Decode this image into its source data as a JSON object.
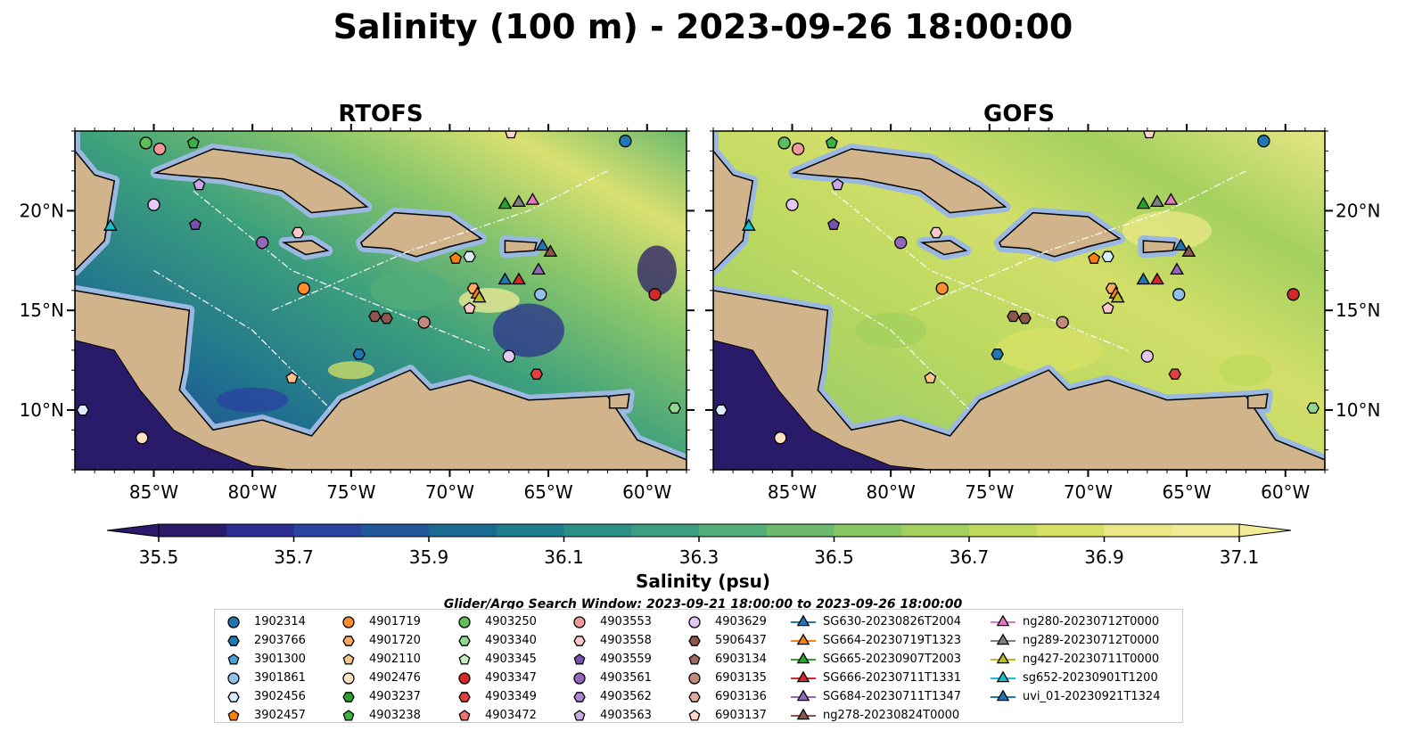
{
  "title": "Salinity (100 m) - 2023-09-26 18:00:00",
  "panels": [
    {
      "title": "RTOFS"
    },
    {
      "title": "GOFS"
    }
  ],
  "map": {
    "lon_range": [
      -89,
      -58
    ],
    "lat_range": [
      7,
      24
    ],
    "lon_ticks": [
      {
        "value": -85,
        "label": "85°W"
      },
      {
        "value": -80,
        "label": "80°W"
      },
      {
        "value": -75,
        "label": "75°W"
      },
      {
        "value": -70,
        "label": "70°W"
      },
      {
        "value": -65,
        "label": "65°W"
      },
      {
        "value": -60,
        "label": "60°W"
      }
    ],
    "lat_ticks": [
      {
        "value": 10,
        "label": "10°N"
      },
      {
        "value": 15,
        "label": "15°N"
      },
      {
        "value": 20,
        "label": "20°N"
      }
    ],
    "colors": {
      "land": "#d2b48c",
      "shallow": "#9bb8e0",
      "coast": "#000000"
    }
  },
  "colorbar": {
    "label": "Salinity (psu)",
    "ticks": [
      "35.5",
      "35.7",
      "35.9",
      "36.1",
      "36.3",
      "36.5",
      "36.7",
      "36.9",
      "37.1"
    ],
    "colors": [
      "#2a1a6a",
      "#2b2c92",
      "#2a42a0",
      "#21589a",
      "#1b6a92",
      "#1e7d8c",
      "#2b8f86",
      "#3d9e80",
      "#53ad78",
      "#6cba6e",
      "#88c664",
      "#a3d05e",
      "#bed95c",
      "#d7e166",
      "#ebe888",
      "#f3ec96"
    ]
  },
  "search_window": "Glider/Argo Search Window: 2023-09-21 18:00:00 to 2023-09-26 18:00:00",
  "legend": {
    "columns": [
      [
        {
          "label": "1902314",
          "marker": "circle",
          "color": "#1f77b4"
        },
        {
          "label": "2903766",
          "marker": "hexagon",
          "color": "#1f77b4"
        },
        {
          "label": "3901300",
          "marker": "pentagon",
          "color": "#4a9fd8"
        },
        {
          "label": "3901861",
          "marker": "circle",
          "color": "#8fc0ea"
        },
        {
          "label": "3902456",
          "marker": "hexagon",
          "color": "#d8ecfa"
        },
        {
          "label": "3902457",
          "marker": "pentagon",
          "color": "#ff7f0e"
        }
      ],
      [
        {
          "label": "4901719",
          "marker": "circle",
          "color": "#ff8c2e"
        },
        {
          "label": "4901720",
          "marker": "hexagon",
          "color": "#ffa860"
        },
        {
          "label": "4902110",
          "marker": "pentagon",
          "color": "#ffc48e"
        },
        {
          "label": "4902476",
          "marker": "circle",
          "color": "#ffe2c4"
        },
        {
          "label": "4903237",
          "marker": "hexagon",
          "color": "#2ca02c"
        },
        {
          "label": "4903238",
          "marker": "pentagon",
          "color": "#3cb043"
        }
      ],
      [
        {
          "label": "4903250",
          "marker": "circle",
          "color": "#5cbf5c"
        },
        {
          "label": "4903340",
          "marker": "hexagon",
          "color": "#8ed98e"
        },
        {
          "label": "4903345",
          "marker": "pentagon",
          "color": "#c4f0c0"
        },
        {
          "label": "4903347",
          "marker": "circle",
          "color": "#d62728"
        },
        {
          "label": "4903349",
          "marker": "hexagon",
          "color": "#e04040"
        },
        {
          "label": "4903472",
          "marker": "pentagon",
          "color": "#f07070"
        }
      ],
      [
        {
          "label": "4903553",
          "marker": "circle",
          "color": "#f29a9a"
        },
        {
          "label": "4903558",
          "marker": "hexagon",
          "color": "#fcc8c8"
        },
        {
          "label": "4903559",
          "marker": "pentagon",
          "color": "#7b4fb0"
        },
        {
          "label": "4903561",
          "marker": "circle",
          "color": "#9467bd"
        },
        {
          "label": "4903562",
          "marker": "hexagon",
          "color": "#ab86d0"
        },
        {
          "label": "4903563",
          "marker": "pentagon",
          "color": "#c9a8e6"
        }
      ],
      [
        {
          "label": "4903629",
          "marker": "circle",
          "color": "#e2c8f2"
        },
        {
          "label": "5906437",
          "marker": "hexagon",
          "color": "#8c564b"
        },
        {
          "label": "6903134",
          "marker": "pentagon",
          "color": "#a0695c"
        },
        {
          "label": "6903135",
          "marker": "circle",
          "color": "#c08a7c"
        },
        {
          "label": "6903136",
          "marker": "hexagon",
          "color": "#e0ae9e"
        },
        {
          "label": "6903137",
          "marker": "pentagon",
          "color": "#ffd6c8"
        }
      ],
      [
        {
          "label": "SG630-20230826T2004",
          "marker": "triangle",
          "color": "#1f77b4"
        },
        {
          "label": "SG664-20230719T1323",
          "marker": "triangle",
          "color": "#ff7f0e"
        },
        {
          "label": "SG665-20230907T2003",
          "marker": "triangle",
          "color": "#2ca02c"
        },
        {
          "label": "SG666-20230711T1331",
          "marker": "triangle",
          "color": "#d62728"
        },
        {
          "label": "SG684-20230711T1347",
          "marker": "triangle",
          "color": "#9467bd"
        },
        {
          "label": "ng278-20230824T0000",
          "marker": "triangle",
          "color": "#8c564b"
        }
      ],
      [
        {
          "label": "ng280-20230712T0000",
          "marker": "triangle",
          "color": "#e377c2"
        },
        {
          "label": "ng289-20230712T0000",
          "marker": "triangle",
          "color": "#7f7f7f"
        },
        {
          "label": "ng427-20230711T0000",
          "marker": "triangle",
          "color": "#bcbd22"
        },
        {
          "label": "sg652-20230901T1200",
          "marker": "triangle",
          "color": "#17becf"
        },
        {
          "label": "uvi_01-20230921T1324",
          "marker": "triangle",
          "color": "#1f77b4"
        }
      ]
    ]
  }
}
